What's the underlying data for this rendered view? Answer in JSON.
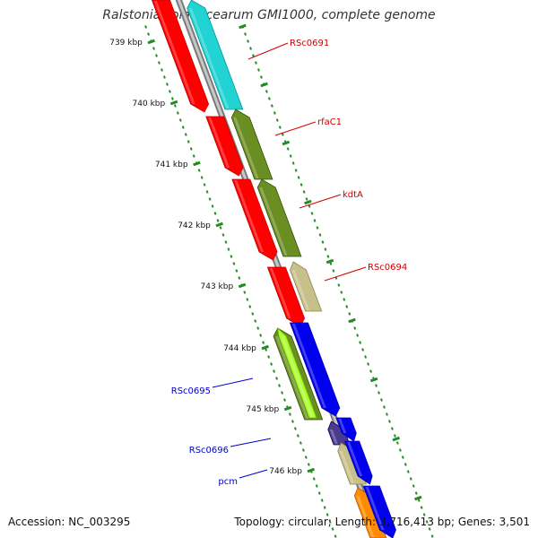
{
  "title": "Ralstonia solanacearum GMI1000, complete genome",
  "footer": {
    "accession": "Accession: NC_003295",
    "summary": "Topology: circular; Length: 3,716,413 bp; Genes: 3,501"
  },
  "ticks": [
    "739 kbp",
    "740 kbp",
    "741 kbp",
    "742 kbp",
    "743 kbp",
    "744 kbp",
    "745 kbp",
    "746 kbp"
  ],
  "colors": {
    "forward_label": "#cc0000",
    "reverse_label": "#0000cc",
    "axis": "#808080",
    "tick": "#228b22",
    "red": "#ff0000",
    "cyan": "#22d3d3",
    "olive": "#6b8e23",
    "khaki": "#c8c08a",
    "blue": "#0000ee",
    "purple": "#4b3b8f",
    "orange": "#ff8c00",
    "lime": "#adff2f"
  },
  "labels": {
    "forward": [
      "RSc0691",
      "rfaC1",
      "kdtA",
      "RSc0694"
    ],
    "reverse": [
      "RSc0695",
      "RSc0696",
      "pcm"
    ]
  }
}
